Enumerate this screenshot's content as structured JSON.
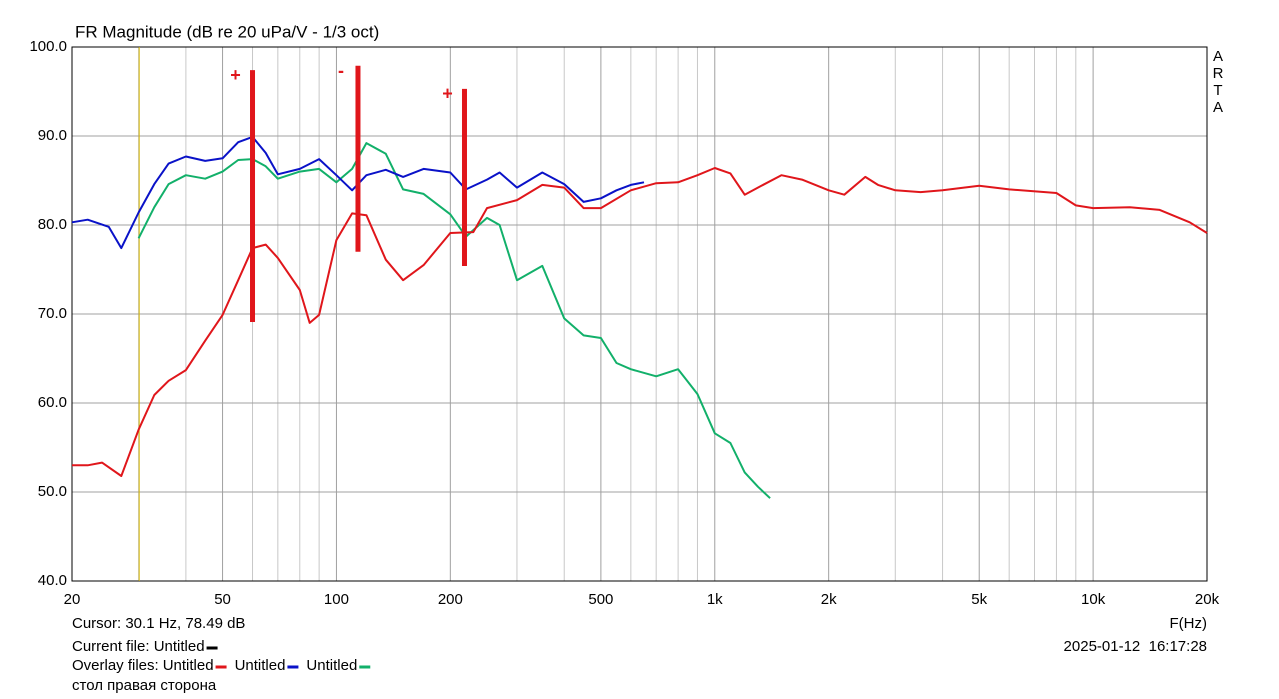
{
  "chart_data": {
    "type": "line",
    "title": "FR Magnitude (dB re 20 uPa/V - 1/3 oct)",
    "side_label": [
      "A",
      "R",
      "T",
      "A"
    ],
    "x_label": "F(Hz)",
    "log_x": true,
    "grid": true,
    "xlim": [
      20,
      20000
    ],
    "ylim": [
      40,
      100
    ],
    "xticks": [
      20,
      50,
      100,
      200,
      500,
      {
        "value": 1000,
        "label": "1k"
      },
      {
        "value": 2000,
        "label": "2k"
      },
      {
        "value": 5000,
        "label": "5k"
      },
      {
        "value": 10000,
        "label": "10k"
      },
      {
        "value": 20000,
        "label": "20k"
      }
    ],
    "xgrid": [
      30,
      40,
      60,
      70,
      80,
      90,
      300,
      400,
      600,
      700,
      800,
      900,
      3000,
      4000,
      6000,
      7000,
      8000,
      9000
    ],
    "yticks": [
      {
        "value": 40,
        "label": "40.0"
      },
      {
        "value": 50,
        "label": "50.0"
      },
      {
        "value": 60,
        "label": "60.0"
      },
      {
        "value": 70,
        "label": "70.0"
      },
      {
        "value": 80,
        "label": "80.0"
      },
      {
        "value": 90,
        "label": "90.0"
      },
      {
        "value": 100,
        "label": "100.0"
      }
    ],
    "series": [
      {
        "name": "Untitled",
        "color": "#e0161b",
        "x": [
          20,
          22,
          24,
          27,
          30,
          33,
          36,
          40,
          45,
          50,
          55,
          60,
          65,
          70,
          80,
          85,
          90,
          100,
          110,
          120,
          135,
          150,
          170,
          200,
          230,
          250,
          300,
          350,
          400,
          450,
          500,
          600,
          700,
          800,
          900,
          1000,
          1100,
          1200,
          1300,
          1500,
          1700,
          2000,
          2200,
          2500,
          2700,
          3000,
          3500,
          4000,
          5000,
          6000,
          8000,
          9000,
          10000,
          12500,
          15000,
          18000,
          20000
        ],
        "values": [
          53.0,
          53.0,
          53.3,
          51.8,
          57.0,
          60.9,
          62.5,
          63.7,
          67.0,
          69.9,
          73.8,
          77.4,
          77.8,
          76.3,
          72.7,
          69.0,
          69.9,
          78.3,
          81.3,
          81.1,
          76.1,
          73.8,
          75.5,
          79.1,
          79.2,
          81.9,
          82.8,
          84.5,
          84.2,
          81.9,
          81.9,
          83.9,
          84.7,
          84.8,
          85.6,
          86.4,
          85.8,
          83.4,
          84.2,
          85.6,
          85.1,
          83.9,
          83.4,
          85.4,
          84.5,
          83.9,
          83.7,
          83.9,
          84.4,
          84.0,
          83.6,
          82.2,
          81.9,
          82.0,
          81.7,
          80.3,
          79.1
        ]
      },
      {
        "name": "Untitled",
        "color": "#0a12c8",
        "x": [
          20,
          22,
          25,
          27,
          30,
          33,
          36,
          40,
          45,
          50,
          55,
          60,
          65,
          70,
          80,
          90,
          100,
          110,
          120,
          135,
          150,
          170,
          200,
          220,
          250,
          270,
          300,
          350,
          400,
          450,
          500,
          550,
          600,
          650
        ],
        "values": [
          80.3,
          80.6,
          79.8,
          77.4,
          81.4,
          84.6,
          86.9,
          87.7,
          87.2,
          87.5,
          89.3,
          89.9,
          88.1,
          85.7,
          86.3,
          87.4,
          85.6,
          83.9,
          85.6,
          86.2,
          85.4,
          86.3,
          85.9,
          84.0,
          85.1,
          85.9,
          84.2,
          85.9,
          84.6,
          82.6,
          83.0,
          83.9,
          84.5,
          84.8
        ]
      },
      {
        "name": "Untitled",
        "color": "#12b06a",
        "x": [
          30,
          33,
          36,
          40,
          45,
          50,
          55,
          60,
          65,
          70,
          80,
          90,
          100,
          110,
          120,
          135,
          150,
          170,
          200,
          220,
          250,
          270,
          300,
          350,
          400,
          450,
          500,
          550,
          600,
          700,
          800,
          900,
          1000,
          1100,
          1200,
          1300,
          1400
        ],
        "values": [
          78.5,
          82.0,
          84.6,
          85.6,
          85.2,
          86.0,
          87.3,
          87.4,
          86.6,
          85.2,
          86.0,
          86.3,
          84.8,
          86.3,
          89.2,
          88.0,
          84.0,
          83.5,
          81.2,
          78.7,
          80.8,
          80.0,
          73.8,
          75.4,
          69.5,
          67.6,
          67.3,
          64.5,
          63.8,
          63.0,
          63.8,
          61.0,
          56.6,
          55.5,
          52.2,
          50.6,
          49.3
        ]
      }
    ],
    "markers": [
      {
        "label": "+",
        "x": 60,
        "y": [
          69.1,
          97.4
        ],
        "color": "#e0161b"
      },
      {
        "label": "-",
        "x": 114,
        "y": [
          77.0,
          97.9
        ],
        "color": "#e0161b"
      },
      {
        "label": "+",
        "x": 218,
        "y": [
          75.4,
          95.3
        ],
        "color": "#e0161b"
      }
    ],
    "cursor": {
      "x": 30.1,
      "color": "#d4b400"
    },
    "cursor_text": "Cursor: 30.1 Hz, 78.49 dB",
    "current_file": {
      "label": "Current file: Untitled",
      "color": "#000000"
    },
    "overlay_label": "Overlay files:",
    "date": "2025-01-12  16:17:28",
    "note": "стол правая сторона"
  }
}
